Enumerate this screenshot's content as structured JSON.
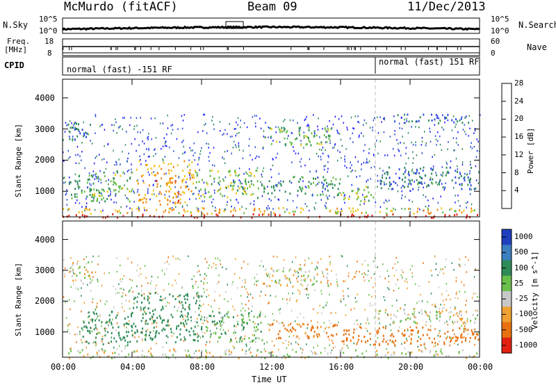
{
  "header": {
    "station": "McMurdo (fitACF)",
    "beam": "Beam 09",
    "date": "11/Dec/2013"
  },
  "strip_sky": {
    "left_label": "N.Sky",
    "left_ticks": [
      "10^5",
      "10^0"
    ],
    "right_label": "N.Search",
    "right_ticks": [
      "10^5",
      "10^0"
    ]
  },
  "strip_freq": {
    "left_label_1": "Freq.",
    "left_label_2": "[MHz]",
    "left_ticks": [
      "18",
      "8"
    ],
    "right_label": "Nave",
    "right_ticks": [
      "60",
      "0"
    ]
  },
  "cpid": {
    "label": "CPID",
    "segments": [
      {
        "text": "normal (fast) -151 RF",
        "start_hour": 0
      },
      {
        "text": "normal (fast) 151 RF",
        "start_hour": 18
      }
    ]
  },
  "chart_data": [
    {
      "type": "heatmap",
      "xlabel": "",
      "ylabel": "Slant Range [km]",
      "xlim": [
        0,
        24
      ],
      "ylim": [
        180,
        4600
      ],
      "yticks": [
        1000,
        2000,
        3000,
        4000
      ],
      "colorbar": {
        "label": "Power [dB]",
        "ticks": [
          "4",
          "8",
          "12",
          "16",
          "20",
          "24",
          "28"
        ],
        "range": [
          0,
          30
        ],
        "colors": [
          "#1a1aff",
          "#2a4cd8",
          "#2e8b57",
          "#6abf4b",
          "#f0c419",
          "#f08a1a",
          "#e22012"
        ]
      },
      "regions": [
        {
          "t0": 0.0,
          "t1": 24.0,
          "r0": 180,
          "r1": 300,
          "value": 30
        },
        {
          "t0": 0.0,
          "t1": 24.0,
          "r0": 300,
          "r1": 500,
          "value": 20
        },
        {
          "t0": 0.3,
          "t1": 2.0,
          "r0": 700,
          "r1": 1600,
          "value": 12
        },
        {
          "t0": 1.5,
          "t1": 4.0,
          "r0": 700,
          "r1": 1700,
          "value": 14
        },
        {
          "t0": 4.2,
          "t1": 7.5,
          "r0": 600,
          "r1": 2000,
          "value": 22
        },
        {
          "t0": 7.5,
          "t1": 11.5,
          "r0": 800,
          "r1": 1700,
          "value": 16
        },
        {
          "t0": 11.5,
          "t1": 16.0,
          "r0": 900,
          "r1": 1500,
          "value": 12
        },
        {
          "t0": 16.0,
          "t1": 18.0,
          "r0": 700,
          "r1": 1200,
          "value": 16
        },
        {
          "t0": 18.0,
          "t1": 24.0,
          "r0": 1100,
          "r1": 1800,
          "value": 9
        },
        {
          "t0": 11.5,
          "t1": 15.5,
          "r0": 2500,
          "r1": 3100,
          "value": 14
        },
        {
          "t0": 0.2,
          "t1": 1.6,
          "r0": 2600,
          "r1": 3300,
          "value": 9
        },
        {
          "t0": 19.0,
          "t1": 23.5,
          "r0": 3200,
          "r1": 3500,
          "value": 8
        }
      ]
    },
    {
      "type": "heatmap",
      "xlabel": "Time UT",
      "ylabel": "Slant Range [km]",
      "xlim": [
        0,
        24
      ],
      "ylim": [
        180,
        4600
      ],
      "xticks": [
        "00:00",
        "04:00",
        "08:00",
        "12:00",
        "16:00",
        "20:00",
        "00:00"
      ],
      "yticks": [
        1000,
        2000,
        3000,
        4000
      ],
      "colorbar": {
        "label": "Velocity [m s^-1]",
        "ticks": [
          "1000",
          "500",
          "100",
          "25",
          "-25",
          "-100",
          "-500",
          "-1000"
        ],
        "colors": [
          "#1f3fbf",
          "#3a7fbf",
          "#2e8b57",
          "#6abf4b",
          "#c8c8c8",
          "#f0a030",
          "#e87010",
          "#e22012"
        ]
      },
      "regions": [
        {
          "t0": 0.0,
          "t1": 24.0,
          "r0": 180,
          "r1": 450,
          "value": 0
        },
        {
          "t0": 1.0,
          "t1": 4.0,
          "r0": 600,
          "r1": 1700,
          "value": 300
        },
        {
          "t0": 4.0,
          "t1": 8.0,
          "r0": 700,
          "r1": 2300,
          "value": 250
        },
        {
          "t0": 8.0,
          "t1": 11.5,
          "r0": 700,
          "r1": 1700,
          "value": 90
        },
        {
          "t0": 11.5,
          "t1": 16.0,
          "r0": 800,
          "r1": 1300,
          "value": -150
        },
        {
          "t0": 16.0,
          "t1": 24.0,
          "r0": 600,
          "r1": 1200,
          "value": -300
        },
        {
          "t0": 18.0,
          "t1": 24.0,
          "r0": 1300,
          "r1": 1800,
          "value": 0
        },
        {
          "t0": 11.5,
          "t1": 15.5,
          "r0": 2500,
          "r1": 3100,
          "value": 0
        },
        {
          "t0": 0.2,
          "t1": 1.6,
          "r0": 2600,
          "r1": 3300,
          "value": 0
        }
      ]
    }
  ]
}
